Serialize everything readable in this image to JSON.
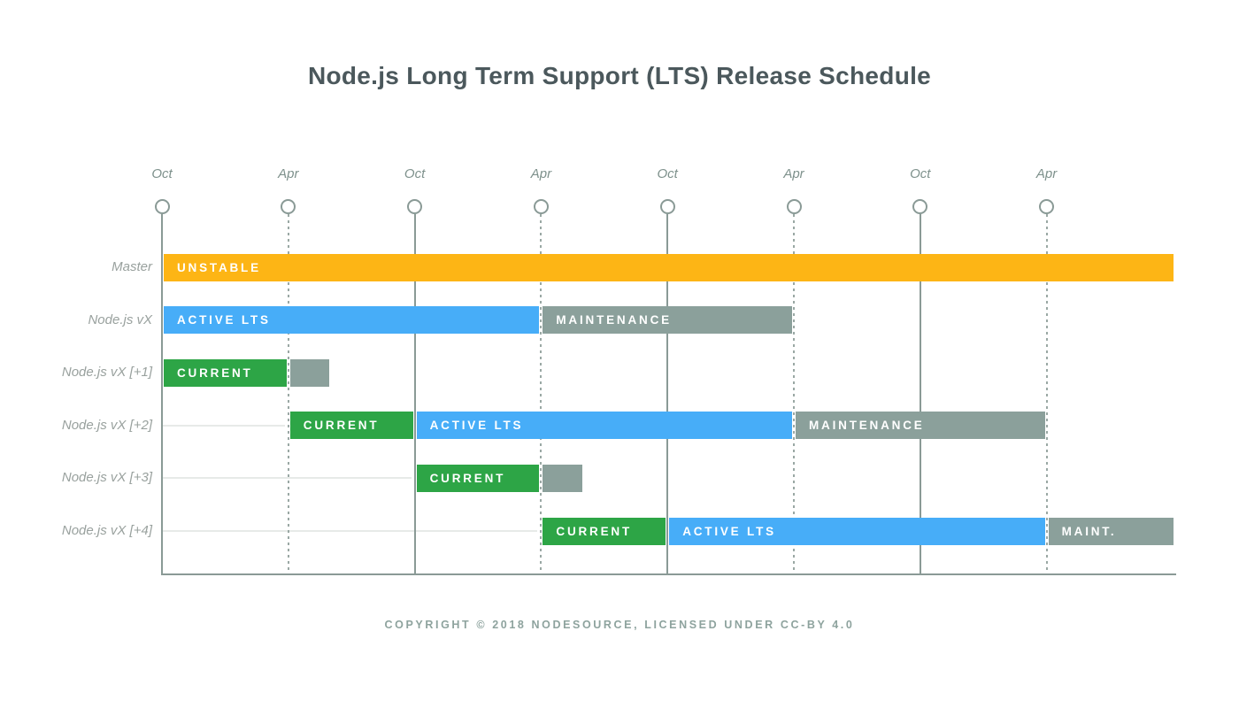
{
  "title": "Node.js Long Term Support (LTS) Release Schedule",
  "footer": "COPYRIGHT © 2018 NODESOURCE, LICENSED UNDER CC-BY 4.0",
  "chart_data": {
    "type": "gantt",
    "title": "Node.js Long Term Support (LTS) Release Schedule",
    "x_axis": {
      "unit": "half-year ticks (6 months apart)",
      "ticks": [
        {
          "label": "Oct",
          "style": "solid"
        },
        {
          "label": "Apr",
          "style": "dashed"
        },
        {
          "label": "Oct",
          "style": "solid"
        },
        {
          "label": "Apr",
          "style": "dashed"
        },
        {
          "label": "Oct",
          "style": "solid"
        },
        {
          "label": "Apr",
          "style": "dashed"
        },
        {
          "label": "Oct",
          "style": "solid"
        },
        {
          "label": "Apr",
          "style": "dashed"
        }
      ],
      "range": [
        0,
        8.02
      ],
      "grid": true
    },
    "colors": {
      "unstable": "#FDB515",
      "current": "#2DA546",
      "active": "#47ADF8",
      "maintenance": "#8BA09B"
    },
    "rows": [
      {
        "label": "Master",
        "bars": [
          {
            "text": "UNSTABLE",
            "type": "unstable",
            "start": 0,
            "end": 8.02
          }
        ]
      },
      {
        "label": "Node.js vX",
        "bars": [
          {
            "text": "ACTIVE LTS",
            "type": "active",
            "start": 0,
            "end": 3
          },
          {
            "text": "MAINTENANCE",
            "type": "maintenance",
            "start": 3,
            "end": 5
          }
        ]
      },
      {
        "label": "Node.js vX [+1]",
        "bars": [
          {
            "text": "CURRENT",
            "type": "current",
            "start": 0,
            "end": 1
          },
          {
            "text": "",
            "type": "maintenance",
            "start": 1,
            "end": 1.34
          }
        ]
      },
      {
        "label": "Node.js vX [+2]",
        "bars": [
          {
            "text": "CURRENT",
            "type": "current",
            "start": 1,
            "end": 2
          },
          {
            "text": "ACTIVE LTS",
            "type": "active",
            "start": 2,
            "end": 5
          },
          {
            "text": "MAINTENANCE",
            "type": "maintenance",
            "start": 5,
            "end": 7
          }
        ]
      },
      {
        "label": "Node.js vX [+3]",
        "bars": [
          {
            "text": "CURRENT",
            "type": "current",
            "start": 2,
            "end": 3
          },
          {
            "text": "",
            "type": "maintenance",
            "start": 3,
            "end": 3.34
          }
        ]
      },
      {
        "label": "Node.js vX [+4]",
        "bars": [
          {
            "text": "CURRENT",
            "type": "current",
            "start": 3,
            "end": 4
          },
          {
            "text": "ACTIVE LTS",
            "type": "active",
            "start": 4,
            "end": 7
          },
          {
            "text": "MAINT.",
            "type": "maintenance",
            "start": 7,
            "end": 8.02
          }
        ]
      }
    ]
  }
}
